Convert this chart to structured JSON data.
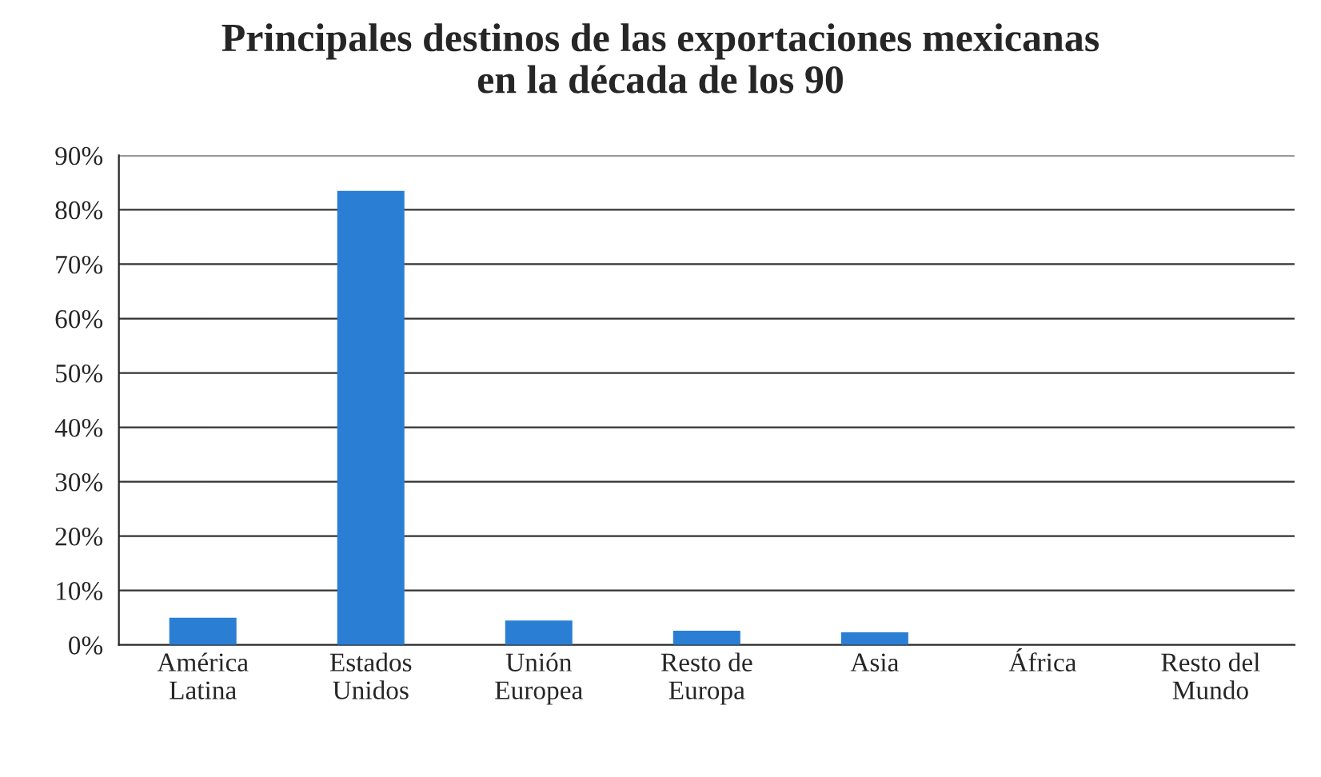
{
  "chart_data": {
    "type": "bar",
    "title": "Principales destinos de las exportaciones mexicanas\nen la década de los 90",
    "categories": [
      "América\nLatina",
      "Estados\nUnidos",
      "Unión\nEuropea",
      "Resto de\nEuropa",
      "Asia",
      "África",
      "Resto del\nMundo"
    ],
    "values": [
      5,
      83.5,
      4.5,
      2.6,
      2.3,
      0,
      0
    ],
    "color": "#2a7fd4",
    "ylim": [
      0,
      90
    ],
    "yticks": [
      {
        "value": 0,
        "label": "0%"
      },
      {
        "value": 10,
        "label": "10%"
      },
      {
        "value": 20,
        "label": "20%"
      },
      {
        "value": 30,
        "label": "30%"
      },
      {
        "value": 40,
        "label": "40%"
      },
      {
        "value": 50,
        "label": "50%"
      },
      {
        "value": 60,
        "label": "60%"
      },
      {
        "value": 70,
        "label": "70%"
      },
      {
        "value": 80,
        "label": "80%"
      },
      {
        "value": 90,
        "label": "90%"
      }
    ],
    "grid": "y",
    "legend": false
  }
}
